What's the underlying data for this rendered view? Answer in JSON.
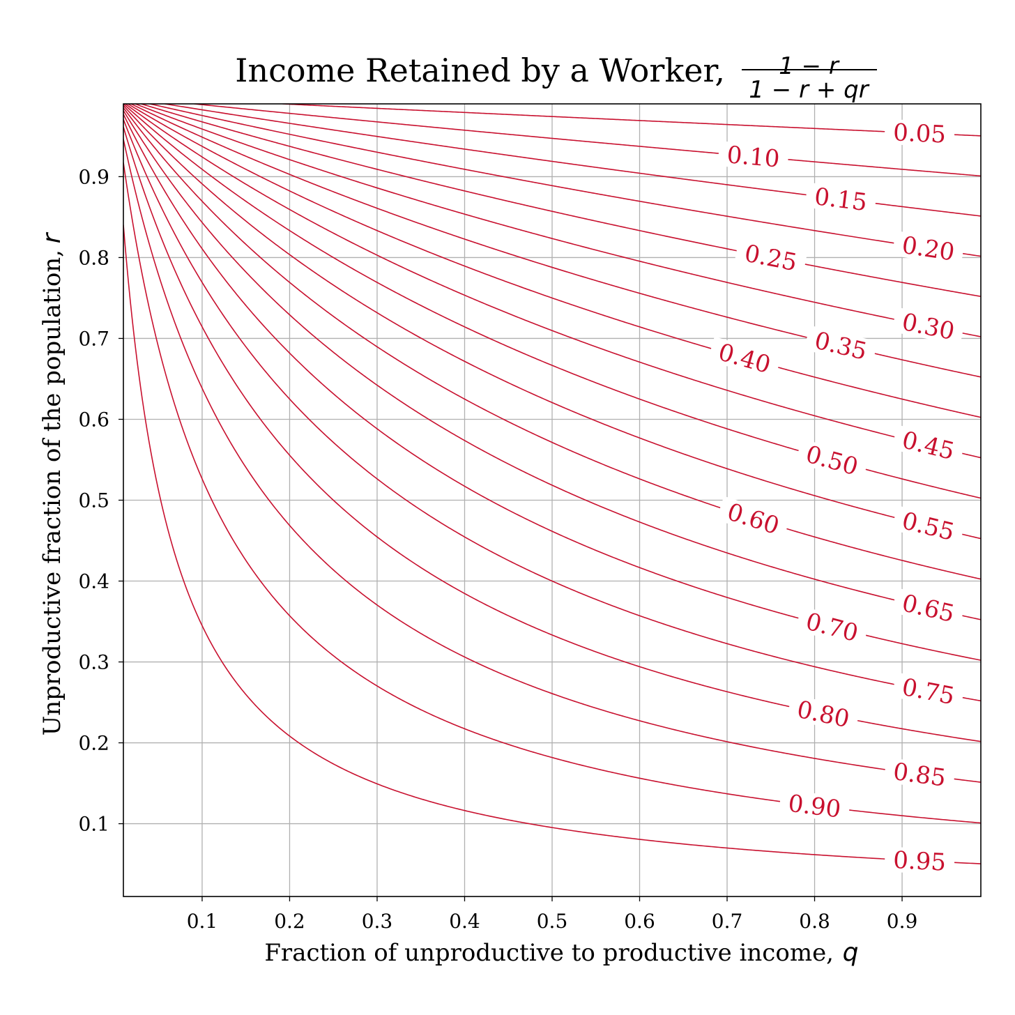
{
  "chart_data": {
    "type": "contour",
    "title_text": "Income Retained by a Worker, ",
    "title_formula": {
      "numerator": "1 − r",
      "denominator": "1 − r + qr"
    },
    "xlabel_text": "Fraction of unproductive to productive income, ",
    "xlabel_var": "q",
    "ylabel_text": "Unproductive fraction of the population, ",
    "ylabel_var": "r",
    "xlim": [
      0.01,
      0.99
    ],
    "ylim": [
      0.01,
      0.99
    ],
    "x_ticks": [
      0.1,
      0.2,
      0.3,
      0.4,
      0.5,
      0.6,
      0.7,
      0.8,
      0.9
    ],
    "x_tick_labels": [
      "0.1",
      "0.2",
      "0.3",
      "0.4",
      "0.5",
      "0.6",
      "0.7",
      "0.8",
      "0.9"
    ],
    "y_ticks": [
      0.1,
      0.2,
      0.3,
      0.4,
      0.5,
      0.6,
      0.7,
      0.8,
      0.9
    ],
    "y_tick_labels": [
      "0.1",
      "0.2",
      "0.3",
      "0.4",
      "0.5",
      "0.6",
      "0.7",
      "0.8",
      "0.9"
    ],
    "grid": true,
    "line_color": "#c8102e",
    "grid_color": "#b0b0b0",
    "levels": [
      0.05,
      0.1,
      0.15,
      0.2,
      0.25,
      0.3,
      0.35,
      0.4,
      0.45,
      0.5,
      0.55,
      0.6,
      0.65,
      0.7,
      0.75,
      0.8,
      0.85,
      0.9,
      0.95
    ],
    "level_labels": [
      "0.05",
      "0.10",
      "0.15",
      "0.20",
      "0.25",
      "0.30",
      "0.35",
      "0.40",
      "0.45",
      "0.50",
      "0.55",
      "0.60",
      "0.65",
      "0.70",
      "0.75",
      "0.80",
      "0.85",
      "0.90",
      "0.95"
    ],
    "label_q": [
      0.92,
      0.73,
      0.83,
      0.93,
      0.75,
      0.93,
      0.83,
      0.72,
      0.93,
      0.82,
      0.93,
      0.73,
      0.93,
      0.82,
      0.93,
      0.81,
      0.92,
      0.8,
      0.92
    ]
  }
}
